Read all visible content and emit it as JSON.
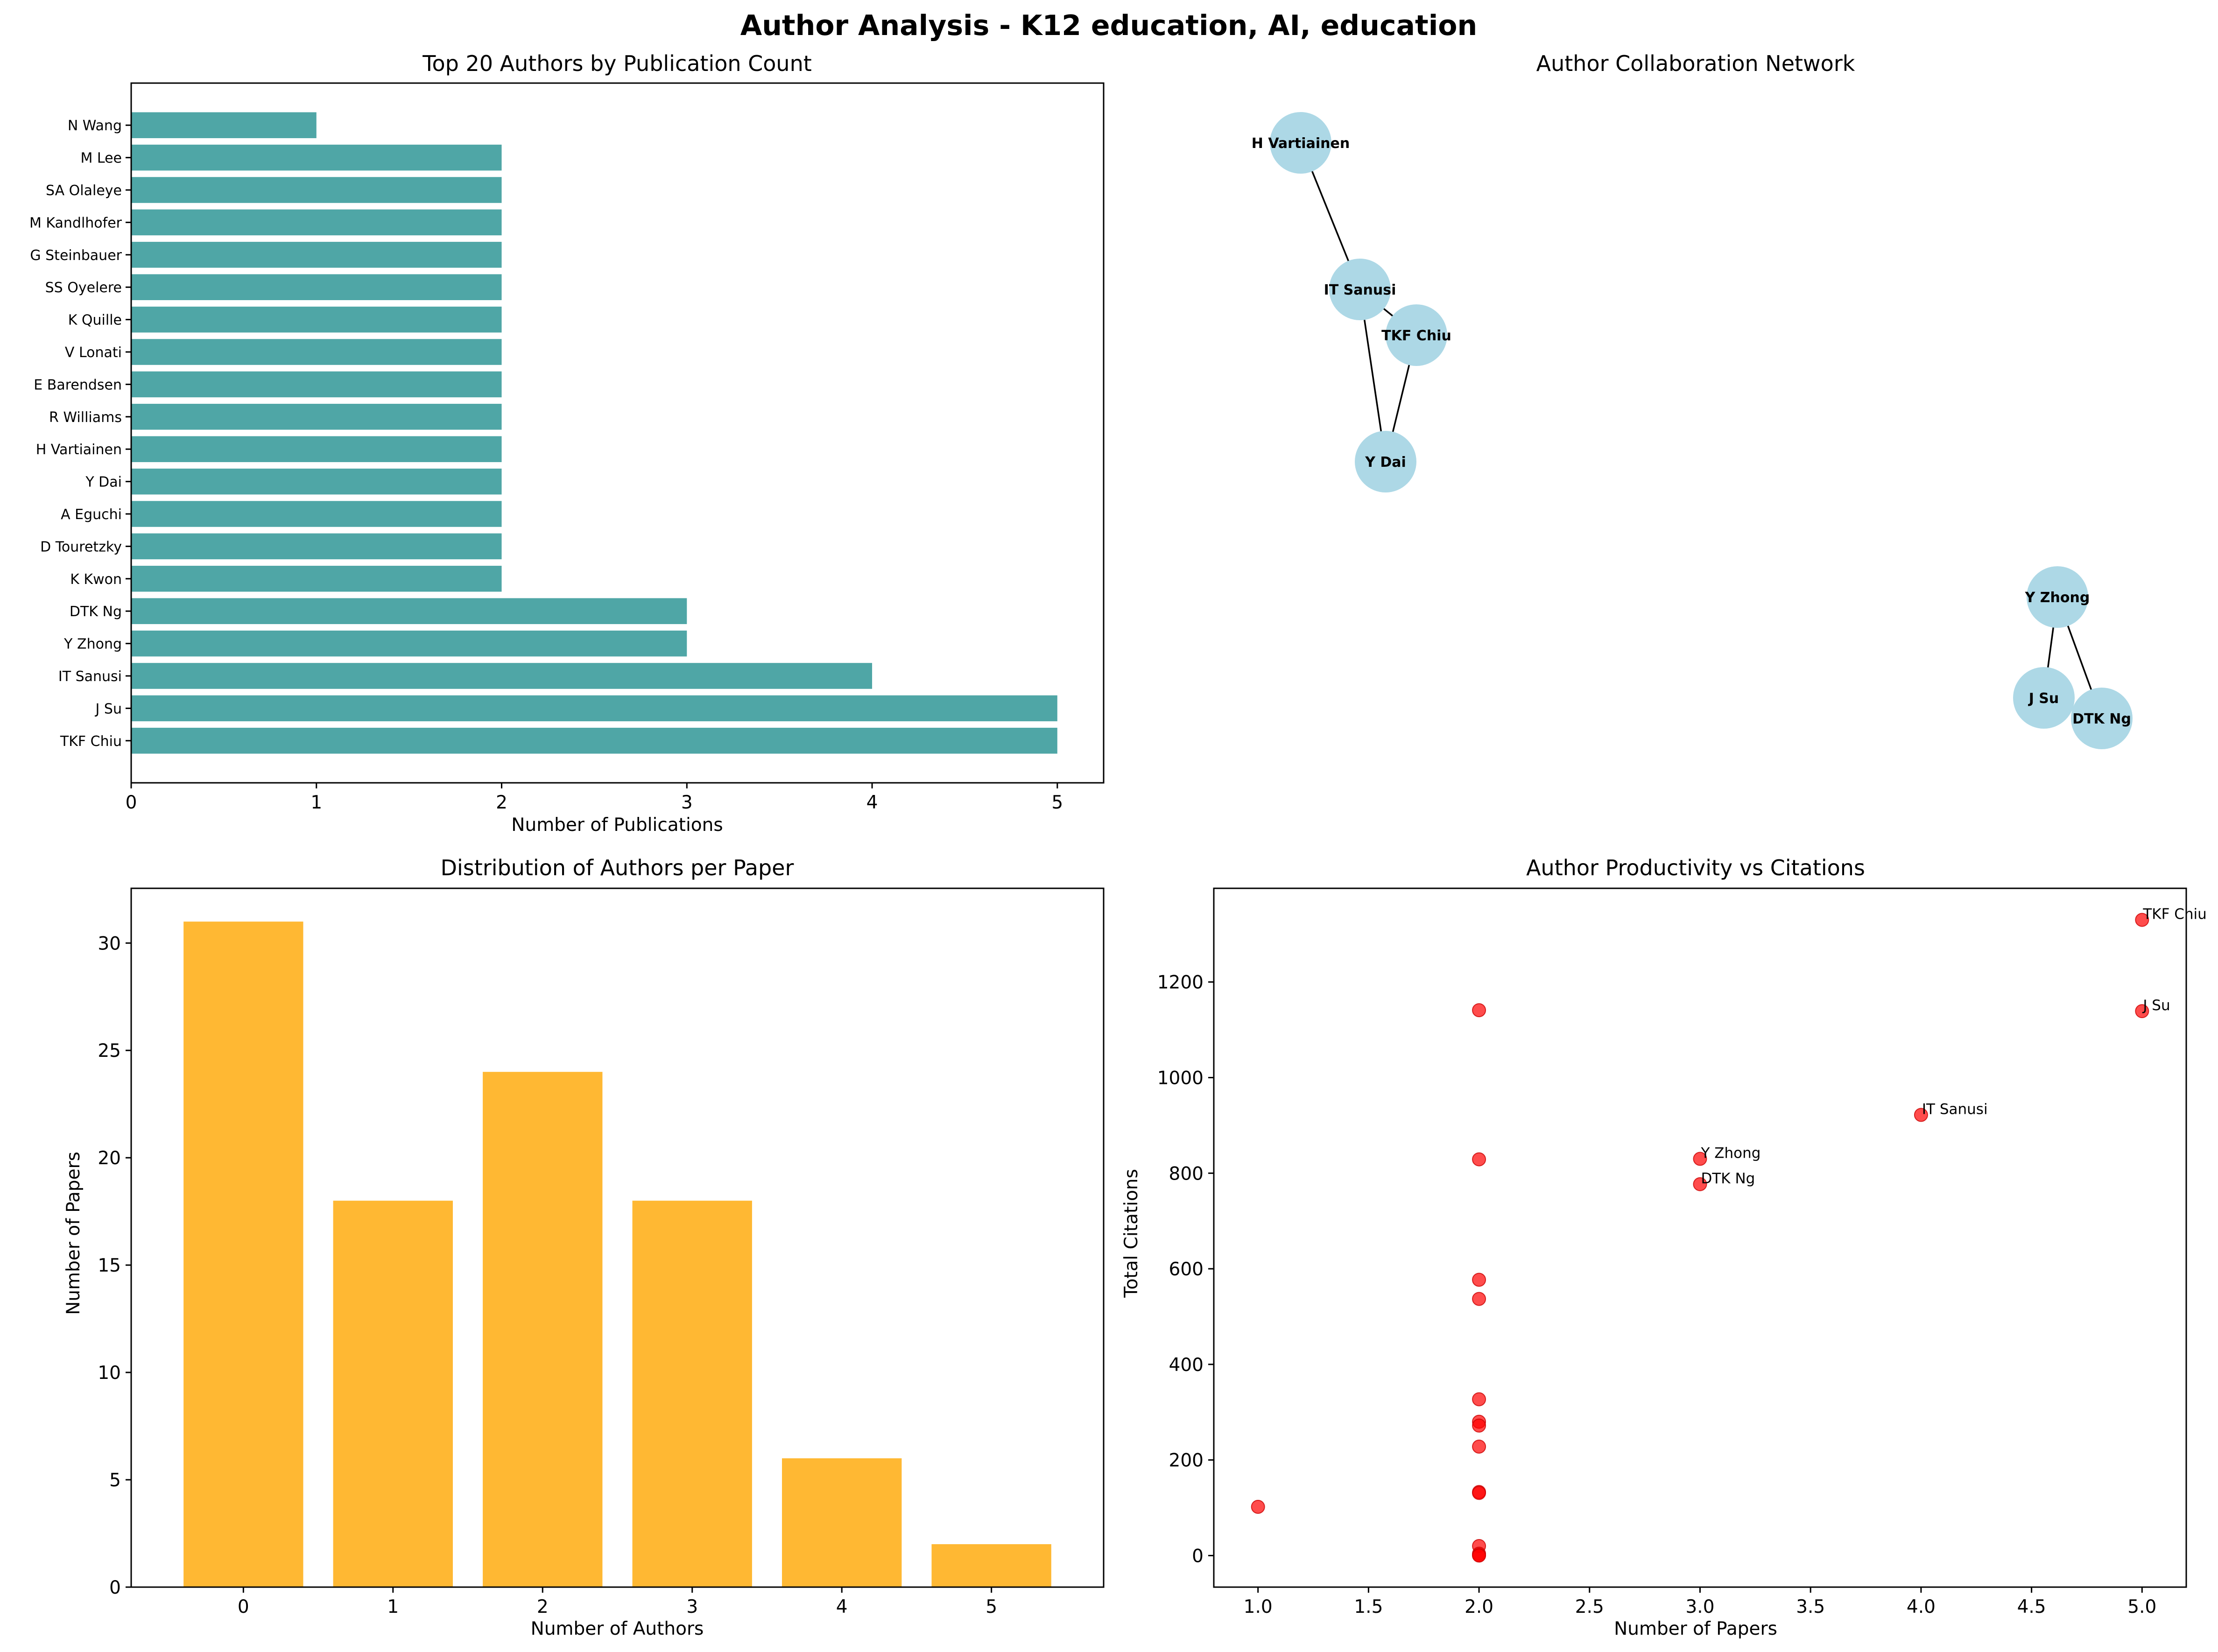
{
  "figure": {
    "suptitle": "Author Analysis - K12 education, AI, education"
  },
  "chart_data": [
    {
      "type": "bar",
      "orientation": "horizontal",
      "title": "Top 20 Authors by Publication Count",
      "xlabel": "Number of Publications",
      "ylabel": "",
      "categories": [
        "TKF Chiu",
        "J Su",
        "IT Sanusi",
        "Y Zhong",
        "DTK Ng",
        "K Kwon",
        "D Touretzky",
        "A Eguchi",
        "Y Dai",
        "H Vartiainen",
        "R Williams",
        "E Barendsen",
        "V Lonati",
        "K Quille",
        "SS Oyelere",
        "G Steinbauer",
        "M Kandlhofer",
        "SA Olaleye",
        "M Lee",
        "N Wang"
      ],
      "values": [
        5,
        5,
        4,
        3,
        3,
        2,
        2,
        2,
        2,
        2,
        2,
        2,
        2,
        2,
        2,
        2,
        2,
        2,
        2,
        1
      ],
      "xlim": [
        0,
        5.25
      ],
      "xticks": [
        "0",
        "1",
        "2",
        "3",
        "4",
        "5"
      ],
      "color": "#4fa6a6",
      "grid": false
    },
    {
      "type": "network",
      "title": "Author Collaboration Network",
      "nodes": [
        "H Vartiainen",
        "IT Sanusi",
        "TKF Chiu",
        "Y Dai",
        "Y Zhong",
        "J Su",
        "DTK Ng"
      ],
      "edges": [
        [
          "H Vartiainen",
          "IT Sanusi"
        ],
        [
          "IT Sanusi",
          "TKF Chiu"
        ],
        [
          "IT Sanusi",
          "Y Dai"
        ],
        [
          "TKF Chiu",
          "Y Dai"
        ],
        [
          "Y Zhong",
          "J Su"
        ],
        [
          "Y Zhong",
          "DTK Ng"
        ]
      ],
      "node_color": "#add8e6"
    },
    {
      "type": "bar",
      "title": "Distribution of Authors per Paper",
      "xlabel": "Number of Authors",
      "ylabel": "Number of Papers",
      "categories": [
        "0",
        "1",
        "2",
        "3",
        "4",
        "5"
      ],
      "values": [
        31,
        18,
        24,
        18,
        6,
        2
      ],
      "ylim": [
        0,
        32.55
      ],
      "yticks": [
        "0",
        "5",
        "10",
        "15",
        "20",
        "25",
        "30"
      ],
      "color": "#ffb833",
      "grid": false
    },
    {
      "type": "scatter",
      "title": "Author Productivity vs Citations",
      "xlabel": "Number of Papers",
      "ylabel": "Total Citations",
      "xlim": [
        0.8,
        5.2
      ],
      "ylim": [
        -66,
        1396
      ],
      "xticks": [
        "1.0",
        "1.5",
        "2.0",
        "2.5",
        "3.0",
        "3.5",
        "4.0",
        "4.5",
        "5.0"
      ],
      "yticks": [
        "0",
        "200",
        "400",
        "600",
        "800",
        "1000",
        "1200"
      ],
      "color": "#ff0000",
      "points": [
        {
          "x": 5,
          "y": 1330,
          "label": "TKF Chiu"
        },
        {
          "x": 5,
          "y": 1139,
          "label": "J Su"
        },
        {
          "x": 4,
          "y": 922,
          "label": "IT Sanusi"
        },
        {
          "x": 3,
          "y": 830,
          "label": "Y Zhong"
        },
        {
          "x": 3,
          "y": 777,
          "label": "DTK Ng"
        },
        {
          "x": 2,
          "y": 1141
        },
        {
          "x": 2,
          "y": 829
        },
        {
          "x": 2,
          "y": 577
        },
        {
          "x": 2,
          "y": 537
        },
        {
          "x": 2,
          "y": 327
        },
        {
          "x": 2,
          "y": 280
        },
        {
          "x": 2,
          "y": 272
        },
        {
          "x": 2,
          "y": 228
        },
        {
          "x": 2,
          "y": 133
        },
        {
          "x": 2,
          "y": 131
        },
        {
          "x": 2,
          "y": 20
        },
        {
          "x": 2,
          "y": 4
        },
        {
          "x": 2,
          "y": 1
        },
        {
          "x": 2,
          "y": 0
        },
        {
          "x": 1,
          "y": 102
        }
      ]
    }
  ]
}
